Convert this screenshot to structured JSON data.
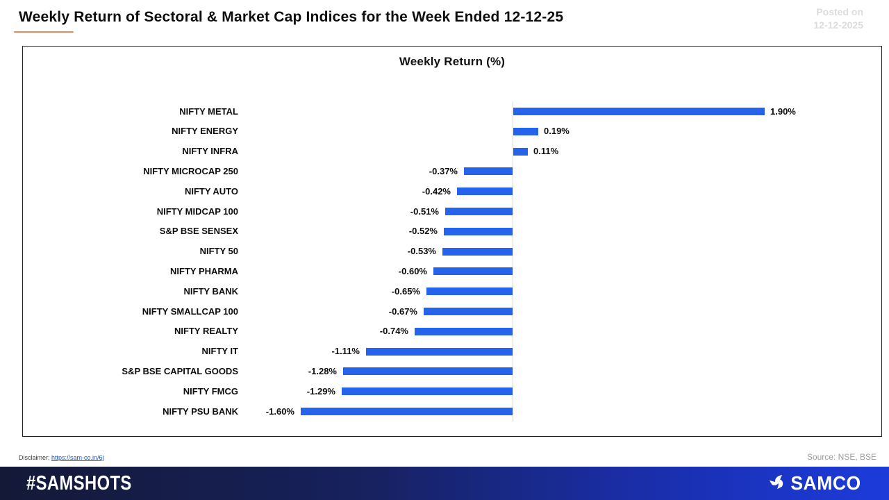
{
  "header": {
    "title": "Weekly Return of Sectoral & Market Cap Indices for the Week Ended 12-12-25",
    "posted_on_label": "Posted on",
    "posted_on_date": "12-12-2025",
    "posted_on_color": "#dcdcdc",
    "underline_color": "#e08a5e"
  },
  "chart_data": {
    "type": "bar",
    "orientation": "horizontal",
    "title": "Weekly Return (%)",
    "categories": [
      "NIFTY METAL",
      "NIFTY ENERGY",
      "NIFTY INFRA",
      "NIFTY MICROCAP 250",
      "NIFTY AUTO",
      "NIFTY MIDCAP 100",
      "S&P BSE SENSEX",
      "NIFTY 50",
      "NIFTY PHARMA",
      "NIFTY BANK",
      "NIFTY SMALLCAP 100",
      "NIFTY REALTY",
      "NIFTY IT",
      "S&P BSE CAPITAL GOODS",
      "NIFTY FMCG",
      "NIFTY PSU BANK"
    ],
    "values": [
      1.9,
      0.19,
      0.11,
      -0.37,
      -0.42,
      -0.51,
      -0.52,
      -0.53,
      -0.6,
      -0.65,
      -0.67,
      -0.74,
      -1.11,
      -1.28,
      -1.29,
      -1.6
    ],
    "value_labels": [
      "1.90%",
      "0.19%",
      "0.11%",
      "-0.37%",
      "-0.42%",
      "-0.51%",
      "-0.52%",
      "-0.53%",
      "-0.60%",
      "-0.65%",
      "-0.67%",
      "-0.74%",
      "-1.11%",
      "-1.28%",
      "-1.29%",
      "-1.60%"
    ],
    "xlabel": "",
    "ylabel": "",
    "xlim": [
      -2.05,
      2.75
    ],
    "grid": false,
    "legend": false,
    "bar_color": "#2563eb",
    "axis_line_color": "#d9d9d9"
  },
  "footer": {
    "disclaimer_label": "Disclaimer:",
    "disclaimer_link": "https://sam-co.in/6j",
    "disclaimer_link_color": "#1155cc",
    "source": "Source: NSE, BSE",
    "hashtag": "#SAMSHOTS",
    "brand": "SAMCO",
    "bar_gradient_left": "#141937",
    "bar_gradient_right": "#1c3bda"
  }
}
